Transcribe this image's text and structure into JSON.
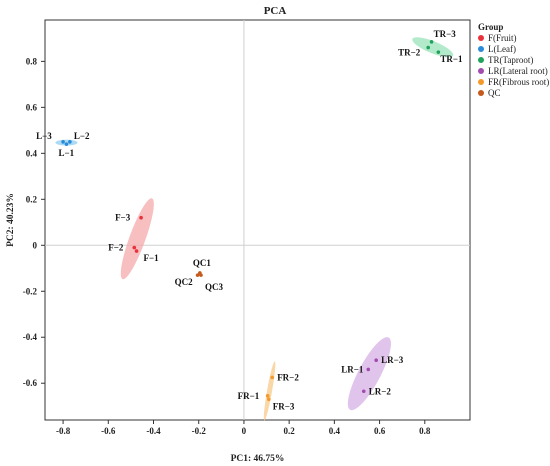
{
  "chart_data": {
    "type": "scatter",
    "title": "PCA",
    "xlabel": "PC1: 46.75%",
    "ylabel": "PC2: 40.23%",
    "xlim": [
      -0.88,
      1.0
    ],
    "ylim": [
      -0.76,
      0.98
    ],
    "xticks": [
      -0.8,
      -0.6,
      -0.4,
      -0.2,
      0,
      0.2,
      0.4,
      0.6,
      0.8
    ],
    "yticks": [
      -0.6,
      -0.4,
      -0.2,
      0,
      0.2,
      0.4,
      0.6,
      0.8
    ],
    "xtick_labels": [
      "-0.8",
      "-0.6",
      "-0.4",
      "-0.2",
      "0",
      "0.2",
      "0.4",
      "0.6",
      "0.8"
    ],
    "ytick_labels": [
      "-0.6",
      "-0.4",
      "-0.2",
      "0",
      "0.2",
      "0.4",
      "0.6",
      "0.8"
    ],
    "grid": false,
    "reference_lines": {
      "x": 0,
      "y": 0
    },
    "legend": {
      "title": "Group",
      "position": "right",
      "entries": [
        "F(Fruit)",
        "L(Leaf)",
        "TR(Taproot)",
        "LR(Lateral root)",
        "FR(Fibrous root)",
        "QC"
      ]
    },
    "series": [
      {
        "name": "F(Fruit)",
        "color": "#e8313a",
        "ellipse_color": "#f4a9ab",
        "points": [
          {
            "label": "F−3",
            "x": -0.455,
            "y": 0.12
          },
          {
            "label": "F−2",
            "x": -0.485,
            "y": -0.01
          },
          {
            "label": "F−1",
            "x": -0.475,
            "y": -0.025
          }
        ]
      },
      {
        "name": "L(Leaf)",
        "color": "#2a8bd8",
        "ellipse_color": "#8fcdf0",
        "points": [
          {
            "label": "L−3",
            "x": -0.8,
            "y": 0.45
          },
          {
            "label": "L−2",
            "x": -0.77,
            "y": 0.45
          },
          {
            "label": "L−1",
            "x": -0.785,
            "y": 0.44
          }
        ]
      },
      {
        "name": "TR(Taproot)",
        "color": "#1fa35a",
        "ellipse_color": "#9be3bb",
        "points": [
          {
            "label": "TR−3",
            "x": 0.83,
            "y": 0.885
          },
          {
            "label": "TR−2",
            "x": 0.815,
            "y": 0.86
          },
          {
            "label": "TR−1",
            "x": 0.86,
            "y": 0.84
          }
        ]
      },
      {
        "name": "LR(Lateral root)",
        "color": "#a24cb0",
        "ellipse_color": "#d7b0e4",
        "points": [
          {
            "label": "LR−3",
            "x": 0.585,
            "y": -0.5
          },
          {
            "label": "LR−1",
            "x": 0.55,
            "y": -0.54
          },
          {
            "label": "LR−2",
            "x": 0.53,
            "y": -0.635
          }
        ]
      },
      {
        "name": "FR(Fibrous root)",
        "color": "#f39a2a",
        "ellipse_color": "#f8c98a",
        "points": [
          {
            "label": "FR−2",
            "x": 0.125,
            "y": -0.575
          },
          {
            "label": "FR−1",
            "x": 0.105,
            "y": -0.655
          },
          {
            "label": "FR−3",
            "x": 0.11,
            "y": -0.67
          }
        ]
      },
      {
        "name": "QC",
        "color": "#c45a1c",
        "ellipse_color": null,
        "points": [
          {
            "label": "QC1",
            "x": -0.195,
            "y": -0.12
          },
          {
            "label": "QC2",
            "x": -0.205,
            "y": -0.13
          },
          {
            "label": "QC3",
            "x": -0.19,
            "y": -0.13
          }
        ]
      }
    ]
  }
}
